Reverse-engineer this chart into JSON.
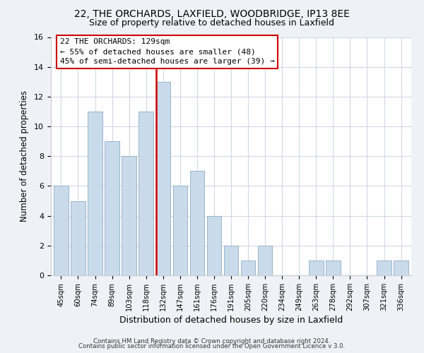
{
  "title1": "22, THE ORCHARDS, LAXFIELD, WOODBRIDGE, IP13 8EE",
  "title2": "Size of property relative to detached houses in Laxfield",
  "xlabel": "Distribution of detached houses by size in Laxfield",
  "ylabel": "Number of detached properties",
  "bar_labels": [
    "45sqm",
    "60sqm",
    "74sqm",
    "89sqm",
    "103sqm",
    "118sqm",
    "132sqm",
    "147sqm",
    "161sqm",
    "176sqm",
    "191sqm",
    "205sqm",
    "220sqm",
    "234sqm",
    "249sqm",
    "263sqm",
    "278sqm",
    "292sqm",
    "307sqm",
    "321sqm",
    "336sqm"
  ],
  "bar_values": [
    6,
    5,
    11,
    9,
    8,
    11,
    13,
    6,
    7,
    4,
    2,
    1,
    2,
    0,
    0,
    1,
    1,
    0,
    0,
    1,
    1
  ],
  "bar_color": "#c9daea",
  "bar_edge_color": "#9ab5cc",
  "highlight_bar_index": 6,
  "highlight_line_color": "#cc0000",
  "ylim": [
    0,
    16
  ],
  "yticks": [
    0,
    2,
    4,
    6,
    8,
    10,
    12,
    14,
    16
  ],
  "annotation_lines": [
    "22 THE ORCHARDS: 129sqm",
    "← 55% of detached houses are smaller (48)",
    "45% of semi-detached houses are larger (39) →"
  ],
  "footer1": "Contains HM Land Registry data © Crown copyright and database right 2024.",
  "footer2": "Contains public sector information licensed under the Open Government Licence v 3.0.",
  "background_color": "#eef2f7",
  "plot_bg_color": "#ffffff",
  "grid_color": "#d0d8e4"
}
